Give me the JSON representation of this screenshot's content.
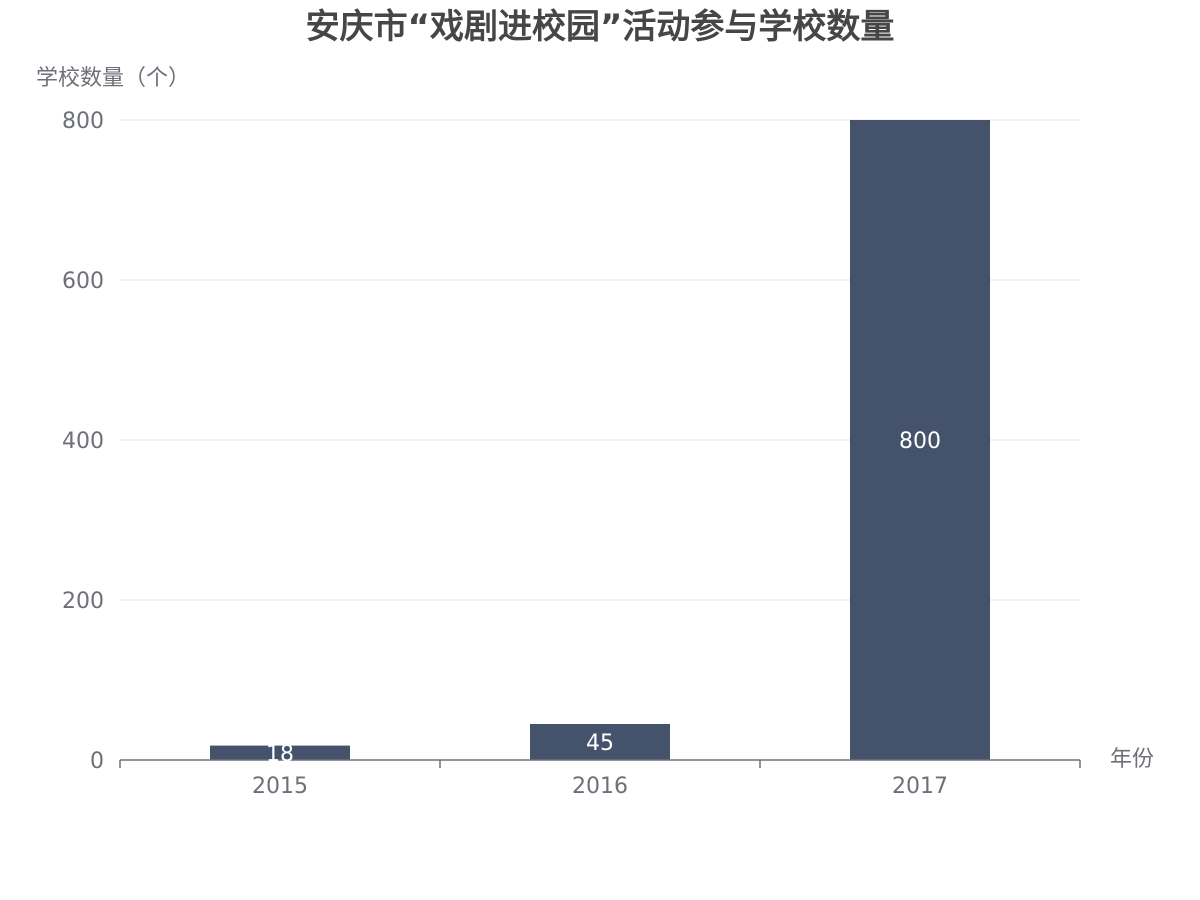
{
  "chart_data": {
    "type": "bar",
    "title": "安庆市“戏剧进校园”活动参与学校数量",
    "xlabel": "年份",
    "ylabel": "学校数量（个）",
    "categories": [
      "2015",
      "2016",
      "2017"
    ],
    "values": [
      18,
      45,
      800
    ],
    "data_labels": [
      "18",
      "45",
      "800"
    ],
    "yticks": [
      "0",
      "200",
      "400",
      "600",
      "800"
    ],
    "ylim": [
      0,
      800
    ],
    "grid": true,
    "colors": {
      "bar": "#44536b",
      "grid": "#e0e6f1",
      "axis": "#6e7079",
      "title": "#464646"
    }
  }
}
